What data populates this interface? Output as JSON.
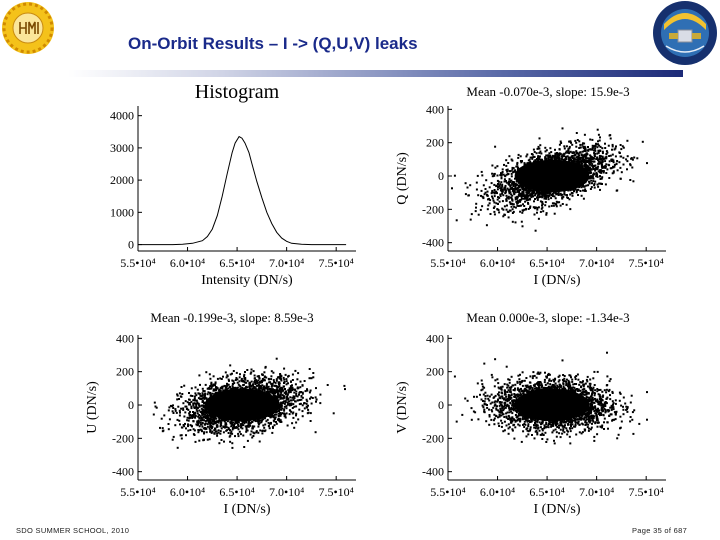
{
  "slide": {
    "title": "On-Orbit Results – I -> (Q,U,V) leaks",
    "footer_left": "SDO SUMMER SCHOOL, 2010",
    "footer_right": "Page 35 of 687",
    "logos": [
      "hmi-sun-logo",
      "solar-dynamics-observatory-logo"
    ]
  },
  "chart_data": [
    {
      "type": "line",
      "id": "histogram",
      "title": "Histogram",
      "xlabel": "Intensity (DN/s)",
      "ylabel": "",
      "xlim": [
        55000,
        77000
      ],
      "ylim": [
        -200,
        4300
      ],
      "xticks": [
        55000,
        60000,
        65000,
        70000,
        75000
      ],
      "xticklabels": [
        "5.5•10⁴",
        "6.0•10⁴",
        "6.5•10⁴",
        "7.0•10⁴",
        "7.5•10⁴"
      ],
      "yticks": [
        0,
        1000,
        2000,
        3000,
        4000
      ],
      "yticklabels": [
        "0",
        "1000",
        "2000",
        "3000",
        "4000"
      ],
      "x": [
        55000,
        57000,
        58500,
        59500,
        60500,
        61500,
        62000,
        62500,
        63000,
        63500,
        64000,
        64500,
        64800,
        65200,
        65500,
        65800,
        66200,
        66500,
        67000,
        67500,
        68000,
        68500,
        69000,
        69500,
        70000,
        70500,
        71500,
        72500,
        74000,
        76000
      ],
      "values": [
        0,
        0,
        0,
        10,
        40,
        120,
        250,
        480,
        900,
        1500,
        2200,
        2850,
        3150,
        3350,
        3300,
        3150,
        2850,
        2500,
        1950,
        1450,
        1000,
        650,
        380,
        200,
        100,
        40,
        10,
        0,
        0,
        0
      ]
    },
    {
      "type": "scatter",
      "id": "i-to-q",
      "title": "Mean -0.070e-3, slope: 15.9e-3",
      "xlabel": "I (DN/s)",
      "ylabel": "Q (DN/s)",
      "xlim": [
        55000,
        77000
      ],
      "ylim": [
        -450,
        420
      ],
      "xticks": [
        55000,
        60000,
        65000,
        70000,
        75000
      ],
      "xticklabels": [
        "5.5•10⁴",
        "6.0•10⁴",
        "6.5•10⁴",
        "7.0•10⁴",
        "7.5•10⁴"
      ],
      "yticks": [
        -400,
        -200,
        0,
        200,
        400
      ],
      "yticklabels": [
        "-400",
        "-200",
        "0",
        "200",
        "400"
      ],
      "mean": -7e-05,
      "slope": 0.0159,
      "cloud": {
        "center_x": 65500,
        "center_y": 0,
        "sd_x": 2900,
        "sd_y": 75
      }
    },
    {
      "type": "scatter",
      "id": "i-to-u",
      "title": "Mean -0.199e-3, slope: 8.59e-3",
      "xlabel": "I (DN/s)",
      "ylabel": "U (DN/s)",
      "xlim": [
        55000,
        77000
      ],
      "ylim": [
        -450,
        420
      ],
      "xticks": [
        55000,
        60000,
        65000,
        70000,
        75000
      ],
      "xticklabels": [
        "5.5•10⁴",
        "6.0•10⁴",
        "6.5•10⁴",
        "7.0•10⁴",
        "7.5•10⁴"
      ],
      "yticks": [
        -400,
        -200,
        0,
        200,
        400
      ],
      "yticklabels": [
        "-400",
        "-200",
        "0",
        "200",
        "400"
      ],
      "mean": -0.000199,
      "slope": 0.00859,
      "cloud": {
        "center_x": 65500,
        "center_y": 0,
        "sd_x": 2900,
        "sd_y": 75
      }
    },
    {
      "type": "scatter",
      "id": "i-to-v",
      "title": "Mean 0.000e-3, slope: -1.34e-3",
      "xlabel": "I (DN/s)",
      "ylabel": "V (DN/s)",
      "xlim": [
        55000,
        77000
      ],
      "ylim": [
        -450,
        420
      ],
      "xticks": [
        55000,
        60000,
        65000,
        70000,
        75000
      ],
      "xticklabels": [
        "5.5•10⁴",
        "6.0•10⁴",
        "6.5•10⁴",
        "7.0•10⁴",
        "7.5•10⁴"
      ],
      "yticks": [
        -400,
        -200,
        0,
        200,
        400
      ],
      "yticklabels": [
        "-400",
        "-200",
        "0",
        "200",
        "400"
      ],
      "mean": 0.0,
      "slope": -0.00134,
      "cloud": {
        "center_x": 65500,
        "center_y": 0,
        "sd_x": 2900,
        "sd_y": 75
      }
    }
  ]
}
